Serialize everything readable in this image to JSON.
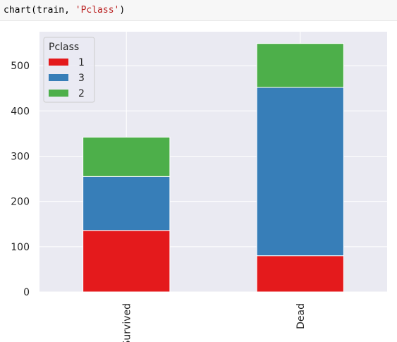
{
  "code": {
    "prefix": "chart(train, ",
    "string": "'Pclass'",
    "suffix": ")"
  },
  "chart_data": {
    "type": "bar",
    "stacked": true,
    "categories": [
      "Survived",
      "Dead"
    ],
    "series": [
      {
        "name": "1",
        "values": [
          136,
          80
        ],
        "color": "#e41a1c"
      },
      {
        "name": "3",
        "values": [
          119,
          372
        ],
        "color": "#377eb8"
      },
      {
        "name": "2",
        "values": [
          87,
          97
        ],
        "color": "#4daf4a"
      }
    ],
    "legend_title": "Pclass",
    "legend_position": "top-left",
    "ylim": [
      0,
      575
    ],
    "yticks": [
      "0",
      "100",
      "200",
      "300",
      "400",
      "500"
    ],
    "grid": true,
    "background": "#eaeaf2",
    "xlabel": "",
    "ylabel": "",
    "title": ""
  }
}
